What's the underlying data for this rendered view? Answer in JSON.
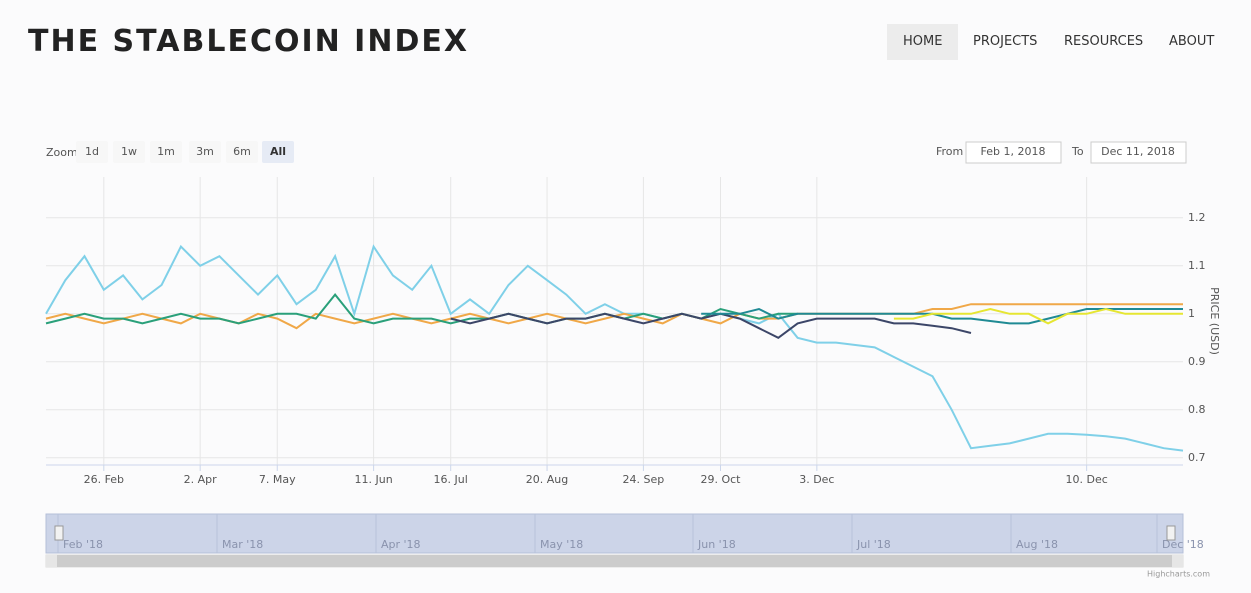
{
  "header": {
    "title": "THE STABLECOIN INDEX",
    "nav": [
      "HOME",
      "PROJECTS",
      "RESOURCES",
      "ABOUT"
    ]
  },
  "controls": {
    "zoom_label": "Zoom",
    "zoom_buttons": [
      "1d",
      "1w",
      "1m",
      "3m",
      "6m",
      "All"
    ],
    "from_label": "From",
    "from_value": "Feb 1, 2018",
    "to_label": "To",
    "to_value": "Dec 11, 2018"
  },
  "chart_data": {
    "type": "line",
    "y_label": "PRICE (USD)",
    "categories": [
      null,
      null,
      null,
      "26. Feb",
      null,
      null,
      null,
      null,
      "2. Apr",
      null,
      null,
      null,
      "7. May",
      null,
      null,
      null,
      null,
      "11. Jun",
      null,
      null,
      null,
      "16. Jul",
      null,
      null,
      null,
      null,
      "20. Aug",
      null,
      null,
      null,
      null,
      "24. Sep",
      null,
      null,
      null,
      "29. Oct",
      null,
      null,
      null,
      null,
      "3. Dec",
      null,
      null,
      null,
      null,
      null,
      null,
      null,
      null,
      null,
      null,
      null,
      null,
      null,
      "10. Dec",
      null,
      null,
      null,
      null,
      null
    ],
    "ylim": [
      0.685,
      1.285
    ],
    "yticks": [
      0.7,
      0.8,
      0.9,
      1,
      1.1,
      1.2
    ],
    "grid": true,
    "series": [
      {
        "color": "#7fd0e8",
        "values": [
          1.0,
          1.07,
          1.12,
          1.05,
          1.08,
          1.03,
          1.06,
          1.14,
          1.1,
          1.12,
          1.08,
          1.04,
          1.08,
          1.02,
          1.05,
          1.12,
          1.0,
          1.14,
          1.08,
          1.05,
          1.1,
          1.0,
          1.03,
          1.0,
          1.06,
          1.1,
          1.07,
          1.04,
          1.0,
          1.02,
          1.0,
          1.0,
          0.99,
          1.0,
          0.99,
          1.0,
          0.99,
          0.98,
          1.0,
          0.95,
          0.94,
          0.94,
          0.935,
          0.93,
          0.91,
          0.89,
          0.87,
          0.8,
          0.72,
          0.725,
          0.73,
          0.74,
          0.75,
          0.75,
          0.748,
          0.745,
          0.74,
          0.73,
          0.72,
          0.715
        ]
      },
      {
        "color": "#f0a848",
        "values": [
          0.99,
          1.0,
          0.99,
          0.98,
          0.99,
          1.0,
          0.99,
          0.98,
          1.0,
          0.99,
          0.98,
          1.0,
          0.99,
          0.97,
          1.0,
          0.99,
          0.98,
          0.99,
          1.0,
          0.99,
          0.98,
          0.99,
          1.0,
          0.99,
          0.98,
          0.99,
          1.0,
          0.99,
          0.98,
          0.99,
          1.0,
          0.99,
          0.98,
          1.0,
          0.99,
          0.98,
          1.0,
          0.99,
          0.99,
          1.0,
          1.0,
          1.0,
          1.0,
          1.0,
          1.0,
          1.0,
          1.01,
          1.01,
          1.02,
          1.02,
          1.02,
          1.02,
          1.02,
          1.02,
          1.02,
          1.02,
          1.02,
          1.02,
          1.02,
          1.02
        ]
      },
      {
        "color": "#2aa07a",
        "values": [
          0.98,
          0.99,
          1.0,
          0.99,
          0.99,
          0.98,
          0.99,
          1.0,
          0.99,
          0.99,
          0.98,
          0.99,
          1.0,
          1.0,
          0.99,
          1.04,
          0.99,
          0.98,
          0.99,
          0.99,
          0.99,
          0.98,
          0.99,
          0.99,
          1.0,
          0.99,
          0.98,
          0.99,
          0.99,
          1.0,
          0.99,
          1.0,
          0.99,
          1.0,
          0.99,
          1.01,
          1.0,
          0.99,
          1.0,
          1.0,
          null,
          null,
          null,
          null,
          null,
          null,
          null,
          null,
          null,
          null,
          null,
          null,
          null,
          null,
          null,
          null,
          null,
          null,
          null,
          null
        ]
      },
      {
        "color": "#3c4668",
        "values": [
          null,
          null,
          null,
          null,
          null,
          null,
          null,
          null,
          null,
          null,
          null,
          null,
          null,
          null,
          null,
          null,
          null,
          null,
          null,
          null,
          null,
          0.99,
          0.98,
          0.99,
          1.0,
          0.99,
          0.98,
          0.99,
          0.99,
          1.0,
          0.99,
          0.98,
          0.99,
          1.0,
          0.99,
          1.0,
          0.99,
          0.97,
          0.95,
          0.98,
          0.99,
          0.99,
          0.99,
          0.99,
          0.98,
          0.98,
          0.975,
          0.97,
          0.96,
          null,
          null,
          null,
          null,
          null,
          null,
          null,
          null,
          null,
          null,
          null
        ]
      },
      {
        "color": "#1f8a94",
        "values": [
          null,
          null,
          null,
          null,
          null,
          null,
          null,
          null,
          null,
          null,
          null,
          null,
          null,
          null,
          null,
          null,
          null,
          null,
          null,
          null,
          null,
          null,
          null,
          null,
          null,
          null,
          null,
          null,
          null,
          null,
          null,
          null,
          null,
          null,
          1.0,
          1.0,
          1.0,
          1.01,
          0.99,
          1.0,
          1.0,
          1.0,
          1.0,
          1.0,
          1.0,
          1.0,
          1.0,
          0.99,
          0.99,
          0.985,
          0.98,
          0.98,
          0.99,
          1.0,
          1.01,
          1.01,
          1.01,
          1.01,
          1.01,
          1.01
        ]
      },
      {
        "color": "#e6e632",
        "values": [
          null,
          null,
          null,
          null,
          null,
          null,
          null,
          null,
          null,
          null,
          null,
          null,
          null,
          null,
          null,
          null,
          null,
          null,
          null,
          null,
          null,
          null,
          null,
          null,
          null,
          null,
          null,
          null,
          null,
          null,
          null,
          null,
          null,
          null,
          null,
          null,
          null,
          null,
          null,
          null,
          null,
          null,
          null,
          null,
          0.99,
          0.99,
          1.0,
          1.0,
          1.0,
          1.01,
          1.0,
          1.0,
          0.98,
          1.0,
          1.0,
          1.01,
          1.0,
          1.0,
          1.0,
          1.0
        ]
      }
    ]
  },
  "navigator": {
    "labels": [
      "Feb '18",
      "Mar '18",
      "Apr '18",
      "May '18",
      "Jun '18",
      "Jul '18",
      "Aug '18",
      "Dec '18"
    ]
  },
  "credit": "Highcharts.com"
}
